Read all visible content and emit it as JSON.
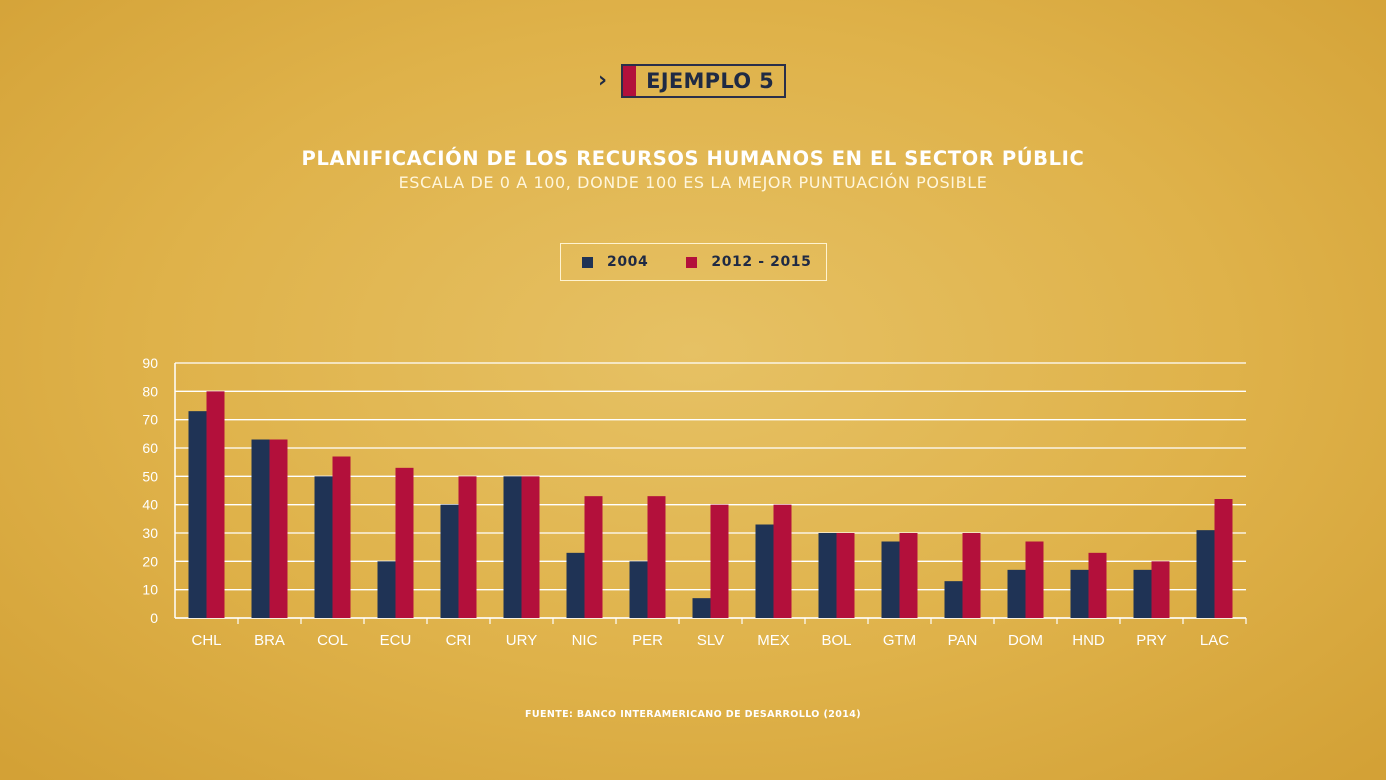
{
  "badge": {
    "chevron": "›",
    "label": "EJEMPLO 5"
  },
  "colors": {
    "series_2004": "#1f3355",
    "series_2012": "#b3103b",
    "accent": "#b3103b",
    "text_dark": "#1f2a44",
    "grid": "#ffffff"
  },
  "source": "FUENTE: BANCO INTERAMERICANO DE DESARROLLO (2014)",
  "chart_data": {
    "type": "bar",
    "title": "PLANIFICACIÓN DE LOS RECURSOS HUMANOS EN EL SECTOR PÚBLIC",
    "subtitle": "ESCALA DE 0 A 100, DONDE 100 ES LA MEJOR PUNTUACIÓN POSIBLE",
    "categories": [
      "CHL",
      "BRA",
      "COL",
      "ECU",
      "CRI",
      "URY",
      "NIC",
      "PER",
      "SLV",
      "MEX",
      "BOL",
      "GTM",
      "PAN",
      "DOM",
      "HND",
      "PRY",
      "LAC"
    ],
    "series": [
      {
        "name": "2004",
        "values": [
          73,
          63,
          50,
          20,
          40,
          50,
          23,
          20,
          7,
          33,
          30,
          27,
          13,
          17,
          17,
          17,
          31
        ]
      },
      {
        "name": "2012 - 2015",
        "values": [
          80,
          63,
          57,
          53,
          50,
          50,
          43,
          43,
          40,
          40,
          30,
          30,
          30,
          27,
          23,
          20,
          42
        ]
      }
    ],
    "ylim": [
      0,
      90
    ],
    "yticks": [
      0,
      10,
      20,
      30,
      40,
      50,
      60,
      70,
      80,
      90
    ],
    "grid": true,
    "legend": "top-center"
  }
}
